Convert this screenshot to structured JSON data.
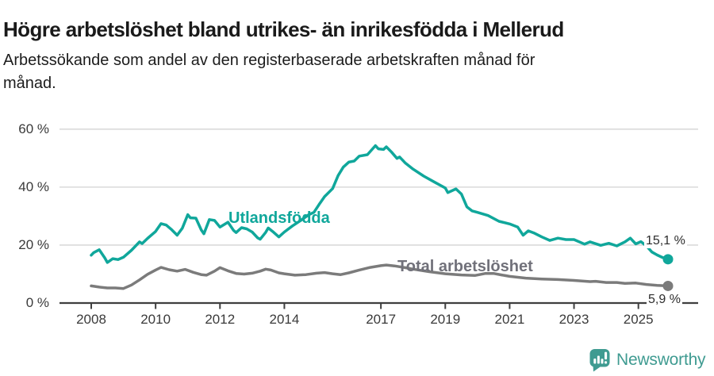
{
  "header": {
    "title": "Högre arbetslöshet bland utrikes- än inrikesfödda i Mellerud",
    "subtitle_lines": [
      "Arbetssökande som andel av den registerbaserade arbetskraften månad för",
      "månad."
    ]
  },
  "chart_data": {
    "type": "line",
    "title": "Högre arbetslöshet bland utrikes- än inrikesfödda i Mellerud",
    "subtitle": "Arbetssökande som andel av den registerbaserade arbetskraften månad för månad.",
    "xlabel": "",
    "ylabel": "",
    "x_unit": "year (monthly observations)",
    "y_unit": "percent",
    "xlim": [
      2007.2,
      2026.3
    ],
    "ylim": [
      0,
      60
    ],
    "grid": "horizontal",
    "legend_position": "inline-labels",
    "y_ticks": [
      {
        "value": 0,
        "label": "0 %"
      },
      {
        "value": 20,
        "label": "20 %"
      },
      {
        "value": 40,
        "label": "40 %"
      },
      {
        "value": 60,
        "label": "60 %"
      }
    ],
    "x_ticks": [
      {
        "value": 2008,
        "label": "2008"
      },
      {
        "value": 2010,
        "label": "2010"
      },
      {
        "value": 2012,
        "label": "2012"
      },
      {
        "value": 2014,
        "label": "2014"
      },
      {
        "value": 2017,
        "label": "2017"
      },
      {
        "value": 2019,
        "label": "2019"
      },
      {
        "value": 2021,
        "label": "2021"
      },
      {
        "value": 2023,
        "label": "2023"
      },
      {
        "value": 2025,
        "label": "2025"
      }
    ],
    "series": [
      {
        "name": "Utlandsfödda",
        "color": "#10a79b",
        "end_label": "15,1 %",
        "end_value": 15.1,
        "points": [
          [
            2008.0,
            16.5
          ],
          [
            2008.08,
            17.4
          ],
          [
            2008.25,
            18.4
          ],
          [
            2008.42,
            15.6
          ],
          [
            2008.5,
            14.0
          ],
          [
            2008.67,
            15.3
          ],
          [
            2008.83,
            15.0
          ],
          [
            2009.0,
            15.8
          ],
          [
            2009.25,
            18.2
          ],
          [
            2009.5,
            21.1
          ],
          [
            2009.58,
            20.5
          ],
          [
            2009.75,
            22.3
          ],
          [
            2010.0,
            24.7
          ],
          [
            2010.17,
            27.4
          ],
          [
            2010.33,
            26.9
          ],
          [
            2010.5,
            25.3
          ],
          [
            2010.67,
            23.4
          ],
          [
            2010.83,
            25.8
          ],
          [
            2011.0,
            30.5
          ],
          [
            2011.08,
            29.4
          ],
          [
            2011.25,
            29.3
          ],
          [
            2011.42,
            25.2
          ],
          [
            2011.5,
            23.9
          ],
          [
            2011.67,
            28.8
          ],
          [
            2011.83,
            28.5
          ],
          [
            2012.0,
            26.2
          ],
          [
            2012.25,
            27.9
          ],
          [
            2012.42,
            25.1
          ],
          [
            2012.5,
            24.3
          ],
          [
            2012.67,
            26.0
          ],
          [
            2012.83,
            25.6
          ],
          [
            2013.0,
            24.5
          ],
          [
            2013.17,
            22.5
          ],
          [
            2013.25,
            22.0
          ],
          [
            2013.42,
            24.4
          ],
          [
            2013.5,
            25.9
          ],
          [
            2013.67,
            24.4
          ],
          [
            2013.83,
            22.8
          ],
          [
            2014.0,
            24.5
          ],
          [
            2014.25,
            26.6
          ],
          [
            2014.5,
            28.4
          ],
          [
            2014.75,
            30.4
          ],
          [
            2014.92,
            31.3
          ],
          [
            2015.08,
            34.0
          ],
          [
            2015.25,
            36.7
          ],
          [
            2015.5,
            39.5
          ],
          [
            2015.67,
            44.0
          ],
          [
            2015.83,
            46.9
          ],
          [
            2016.0,
            48.6
          ],
          [
            2016.17,
            49.0
          ],
          [
            2016.33,
            50.7
          ],
          [
            2016.58,
            51.2
          ],
          [
            2016.83,
            54.3
          ],
          [
            2016.92,
            53.2
          ],
          [
            2017.08,
            53.0
          ],
          [
            2017.17,
            53.9
          ],
          [
            2017.33,
            52.1
          ],
          [
            2017.5,
            49.9
          ],
          [
            2017.58,
            50.4
          ],
          [
            2017.75,
            48.4
          ],
          [
            2018.0,
            46.2
          ],
          [
            2018.33,
            43.8
          ],
          [
            2018.67,
            41.7
          ],
          [
            2019.0,
            39.7
          ],
          [
            2019.08,
            38.1
          ],
          [
            2019.33,
            39.4
          ],
          [
            2019.5,
            37.6
          ],
          [
            2019.67,
            33.2
          ],
          [
            2019.83,
            31.8
          ],
          [
            2020.0,
            31.3
          ],
          [
            2020.33,
            30.2
          ],
          [
            2020.67,
            28.2
          ],
          [
            2021.0,
            27.3
          ],
          [
            2021.25,
            26.2
          ],
          [
            2021.42,
            23.4
          ],
          [
            2021.58,
            24.9
          ],
          [
            2021.75,
            24.2
          ],
          [
            2022.0,
            22.8
          ],
          [
            2022.25,
            21.6
          ],
          [
            2022.5,
            22.4
          ],
          [
            2022.75,
            21.9
          ],
          [
            2023.0,
            21.9
          ],
          [
            2023.33,
            20.3
          ],
          [
            2023.5,
            21.1
          ],
          [
            2023.83,
            19.9
          ],
          [
            2024.08,
            20.6
          ],
          [
            2024.33,
            19.7
          ],
          [
            2024.58,
            21.1
          ],
          [
            2024.75,
            22.4
          ],
          [
            2024.92,
            20.4
          ],
          [
            2025.08,
            21.2
          ],
          [
            2025.25,
            19.7
          ],
          [
            2025.42,
            17.6
          ],
          [
            2025.58,
            16.6
          ],
          [
            2025.75,
            15.7
          ],
          [
            2025.92,
            15.1
          ]
        ]
      },
      {
        "name": "Total arbetslöshet",
        "color": "#7b7b7b",
        "end_label": "5,9 %",
        "end_value": 5.9,
        "points": [
          [
            2008.0,
            5.9
          ],
          [
            2008.25,
            5.5
          ],
          [
            2008.5,
            5.2
          ],
          [
            2008.75,
            5.2
          ],
          [
            2009.0,
            5.0
          ],
          [
            2009.25,
            6.2
          ],
          [
            2009.5,
            8.0
          ],
          [
            2009.75,
            9.9
          ],
          [
            2010.0,
            11.4
          ],
          [
            2010.17,
            12.3
          ],
          [
            2010.42,
            11.5
          ],
          [
            2010.67,
            11.0
          ],
          [
            2010.92,
            11.6
          ],
          [
            2011.17,
            10.6
          ],
          [
            2011.42,
            9.8
          ],
          [
            2011.58,
            9.6
          ],
          [
            2011.83,
            11.0
          ],
          [
            2012.0,
            12.2
          ],
          [
            2012.25,
            11.1
          ],
          [
            2012.5,
            10.2
          ],
          [
            2012.75,
            10.0
          ],
          [
            2013.0,
            10.3
          ],
          [
            2013.25,
            11.0
          ],
          [
            2013.42,
            11.7
          ],
          [
            2013.58,
            11.4
          ],
          [
            2013.83,
            10.4
          ],
          [
            2014.0,
            10.1
          ],
          [
            2014.33,
            9.6
          ],
          [
            2014.67,
            9.8
          ],
          [
            2015.0,
            10.3
          ],
          [
            2015.25,
            10.5
          ],
          [
            2015.5,
            10.1
          ],
          [
            2015.75,
            9.8
          ],
          [
            2016.0,
            10.4
          ],
          [
            2016.33,
            11.4
          ],
          [
            2016.67,
            12.3
          ],
          [
            2017.0,
            12.9
          ],
          [
            2017.17,
            13.1
          ],
          [
            2017.42,
            12.8
          ],
          [
            2017.75,
            12.2
          ],
          [
            2018.0,
            11.7
          ],
          [
            2018.5,
            10.8
          ],
          [
            2019.0,
            10.1
          ],
          [
            2019.5,
            9.7
          ],
          [
            2019.92,
            9.5
          ],
          [
            2020.25,
            10.2
          ],
          [
            2020.5,
            10.2
          ],
          [
            2020.75,
            9.7
          ],
          [
            2021.0,
            9.2
          ],
          [
            2021.5,
            8.6
          ],
          [
            2022.0,
            8.3
          ],
          [
            2022.5,
            8.1
          ],
          [
            2023.0,
            7.8
          ],
          [
            2023.5,
            7.4
          ],
          [
            2023.67,
            7.5
          ],
          [
            2024.0,
            7.1
          ],
          [
            2024.33,
            7.1
          ],
          [
            2024.58,
            6.8
          ],
          [
            2024.92,
            6.9
          ],
          [
            2025.25,
            6.4
          ],
          [
            2025.58,
            6.1
          ],
          [
            2025.92,
            5.9
          ]
        ]
      }
    ],
    "colors": {
      "accent_teal": "#10a79b",
      "line_gray": "#7b7b7b",
      "gridline": "#dadada",
      "axis": "#3f3f3f",
      "text": "#1a1a1a"
    }
  },
  "footer": {
    "brand": "Newsworthy",
    "brand_color": "#3f9b91"
  }
}
